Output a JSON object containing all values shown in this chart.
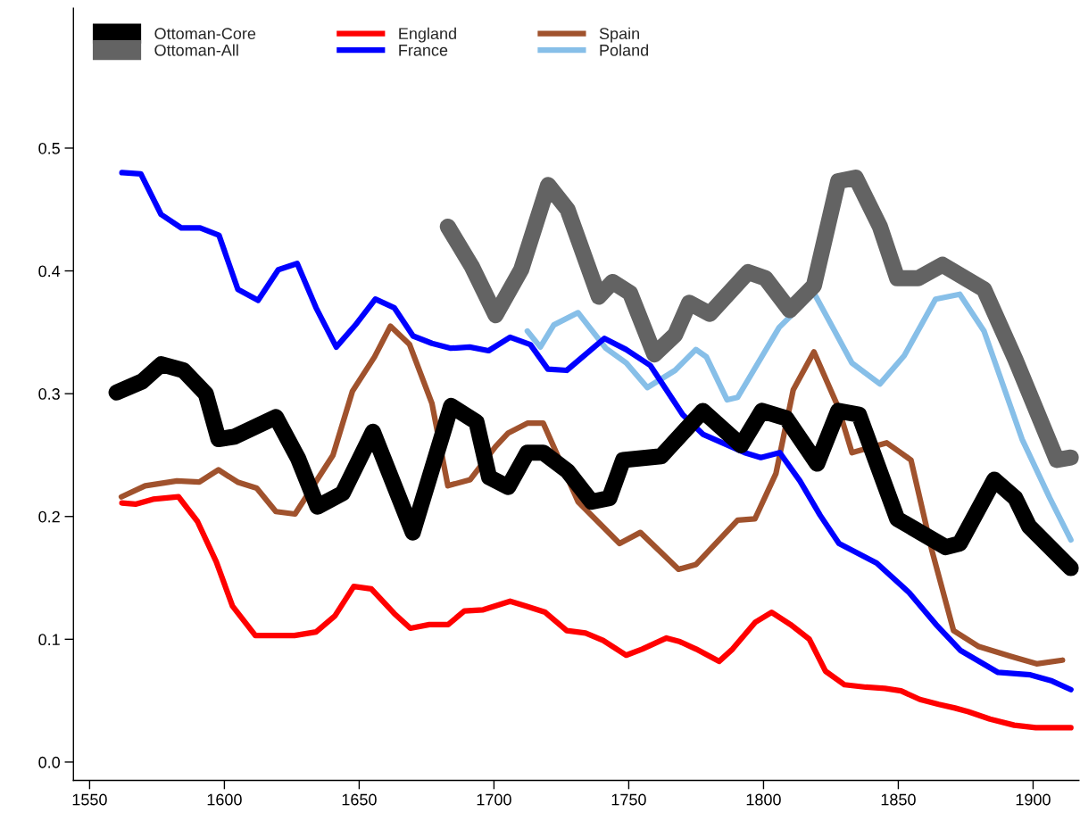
{
  "chart_data": {
    "type": "line",
    "xlim": [
      1544,
      1917
    ],
    "ylim": [
      -0.015,
      0.614
    ],
    "xticks": [
      1550,
      1600,
      1650,
      1700,
      1750,
      1800,
      1850,
      1900
    ],
    "yticks": [
      {
        "value": 0,
        "label": "0.0"
      },
      {
        "value": 0.1,
        "label": "0.1"
      },
      {
        "value": 0.2,
        "label": "0.2"
      },
      {
        "value": 0.3,
        "label": "0.3"
      },
      {
        "value": 0.4,
        "label": "0.4"
      },
      {
        "value": 0.5,
        "label": "0.5"
      }
    ],
    "grid": false,
    "legend": "top left",
    "marker": "none",
    "line_style": "solid",
    "series": [
      {
        "name": "Ottoman-Core",
        "color": "#000000",
        "x": [
          1560,
          1569.5,
          1576.6,
          1584.8,
          1593.1,
          1597.8,
          1603.7,
          1619.1,
          1627.4,
          1634.5,
          1643.9,
          1655.1,
          1669.9,
          1684.1,
          1693.5,
          1698.2,
          1705.3,
          1712.4,
          1718.3,
          1727.3,
          1736.2,
          1742.8,
          1747.9,
          1762,
          1777.5,
          1791.7,
          1799.4,
          1808.4,
          1819.9,
          1827.7,
          1835.4,
          1849.6,
          1867.6,
          1872.8,
          1885.6,
          1893.4,
          1898.5,
          1914
        ],
        "values": [
          0.301,
          0.31,
          0.324,
          0.319,
          0.3,
          0.263,
          0.265,
          0.281,
          0.247,
          0.208,
          0.219,
          0.269,
          0.187,
          0.29,
          0.277,
          0.232,
          0.224,
          0.252,
          0.252,
          0.237,
          0.212,
          0.215,
          0.246,
          0.249,
          0.286,
          0.258,
          0.286,
          0.28,
          0.243,
          0.286,
          0.283,
          0.198,
          0.175,
          0.178,
          0.23,
          0.215,
          0.192,
          0.158
        ]
      },
      {
        "name": "Ottoman-All",
        "color": "#636363",
        "x": [
          1682.9,
          1691.7,
          1700.6,
          1710.1,
          1720.1,
          1727.3,
          1738.9,
          1744,
          1750.5,
          1759.5,
          1767.2,
          1772.4,
          1780.1,
          1794.3,
          1800.7,
          1809.7,
          1818.7,
          1827.7,
          1834.2,
          1843.2,
          1849.6,
          1857.3,
          1866.4,
          1881.8,
          1893.4,
          1908.8,
          1914
        ],
        "values": [
          0.436,
          0.404,
          0.364,
          0.401,
          0.47,
          0.45,
          0.379,
          0.391,
          0.382,
          0.332,
          0.348,
          0.374,
          0.365,
          0.399,
          0.394,
          0.368,
          0.388,
          0.473,
          0.476,
          0.436,
          0.394,
          0.394,
          0.405,
          0.385,
          0.328,
          0.246,
          0.248
        ]
      },
      {
        "name": "England",
        "color": "#ff0000",
        "x": [
          1562,
          1567,
          1573.5,
          1583,
          1590,
          1597,
          1603,
          1611.5,
          1620,
          1626,
          1634,
          1641,
          1648,
          1654.5,
          1663,
          1669,
          1676,
          1683,
          1689,
          1696,
          1706,
          1712,
          1719,
          1727,
          1734,
          1740.5,
          1749,
          1755,
          1764,
          1769,
          1775,
          1783.5,
          1788.5,
          1797,
          1803,
          1810,
          1817,
          1823,
          1830,
          1838,
          1845,
          1851,
          1858,
          1865,
          1871,
          1876,
          1884,
          1893,
          1901,
          1914
        ],
        "values": [
          0.211,
          0.21,
          0.214,
          0.216,
          0.196,
          0.163,
          0.127,
          0.103,
          0.103,
          0.103,
          0.106,
          0.119,
          0.143,
          0.141,
          0.121,
          0.109,
          0.112,
          0.112,
          0.123,
          0.124,
          0.131,
          0.127,
          0.122,
          0.107,
          0.105,
          0.099,
          0.087,
          0.092,
          0.101,
          0.098,
          0.092,
          0.082,
          0.092,
          0.114,
          0.122,
          0.112,
          0.1,
          0.074,
          0.063,
          0.061,
          0.06,
          0.058,
          0.051,
          0.047,
          0.044,
          0.041,
          0.035,
          0.03,
          0.028,
          0.028
        ]
      },
      {
        "name": "France",
        "color": "#0000ff",
        "x": [
          1562,
          1569,
          1576.5,
          1584,
          1591,
          1598,
          1605,
          1612.5,
          1620,
          1627,
          1634,
          1641.5,
          1649,
          1656,
          1663,
          1670,
          1677,
          1684,
          1691,
          1698,
          1706,
          1713.5,
          1720,
          1727,
          1741,
          1749,
          1758,
          1770,
          1777.5,
          1793,
          1799,
          1806,
          1813.5,
          1821,
          1828,
          1842,
          1854,
          1864,
          1873,
          1887,
          1899,
          1907,
          1914
        ],
        "values": [
          0.48,
          0.479,
          0.446,
          0.435,
          0.435,
          0.429,
          0.385,
          0.376,
          0.401,
          0.406,
          0.37,
          0.338,
          0.357,
          0.377,
          0.37,
          0.347,
          0.341,
          0.337,
          0.338,
          0.335,
          0.346,
          0.34,
          0.32,
          0.319,
          0.345,
          0.336,
          0.323,
          0.283,
          0.267,
          0.252,
          0.248,
          0.252,
          0.229,
          0.201,
          0.178,
          0.162,
          0.138,
          0.112,
          0.091,
          0.073,
          0.071,
          0.066,
          0.059
        ]
      },
      {
        "name": "Spain",
        "color": "#a0522d",
        "x": [
          1561.8,
          1570.6,
          1582.4,
          1590.7,
          1597.8,
          1604.9,
          1612,
          1619.1,
          1626.2,
          1640.3,
          1647.5,
          1655.7,
          1661.6,
          1668.7,
          1677,
          1682.9,
          1691.2,
          1700.6,
          1705.3,
          1712.4,
          1718.3,
          1731.2,
          1746.6,
          1754.3,
          1768.5,
          1775,
          1790.4,
          1796.8,
          1804.6,
          1811,
          1818.7,
          1827.7,
          1832.8,
          1845.7,
          1854.7,
          1862.5,
          1870.5,
          1879.9,
          1891.8,
          1901.3,
          1910.9
        ],
        "values": [
          0.216,
          0.225,
          0.229,
          0.228,
          0.238,
          0.228,
          0.223,
          0.204,
          0.202,
          0.25,
          0.302,
          0.33,
          0.355,
          0.34,
          0.292,
          0.225,
          0.23,
          0.257,
          0.268,
          0.276,
          0.276,
          0.212,
          0.178,
          0.187,
          0.157,
          0.161,
          0.197,
          0.198,
          0.235,
          0.303,
          0.334,
          0.289,
          0.252,
          0.26,
          0.246,
          0.172,
          0.107,
          0.094,
          0.086,
          0.08,
          0.083
        ]
      },
      {
        "name": "Poland",
        "color": "#87bfe8",
        "x": [
          1712.4,
          1717.2,
          1722.2,
          1731.2,
          1741.5,
          1749.1,
          1756.9,
          1767.2,
          1774.9,
          1778.8,
          1786.5,
          1790.4,
          1805.8,
          1818.7,
          1826.4,
          1832.8,
          1843.2,
          1852.2,
          1863.8,
          1872.8,
          1881.8,
          1895.9,
          1906.2,
          1914
        ],
        "values": [
          0.351,
          0.338,
          0.356,
          0.366,
          0.337,
          0.325,
          0.305,
          0.319,
          0.336,
          0.33,
          0.295,
          0.297,
          0.354,
          0.382,
          0.351,
          0.325,
          0.308,
          0.331,
          0.377,
          0.381,
          0.351,
          0.263,
          0.215,
          0.181
        ]
      }
    ]
  }
}
